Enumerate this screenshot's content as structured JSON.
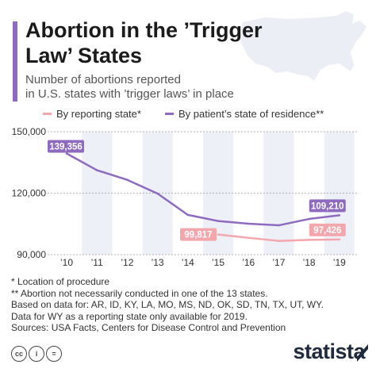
{
  "title": "Abortion in the ’Trigger Law’ States",
  "subtitle_lines": [
    "Number of abortions reported",
    "in U.S. states with ’trigger laws’ in place"
  ],
  "colors": {
    "accent": "#8e6bbf",
    "residence_line": "#8e6bbf",
    "reporting_line": "#f4a6ad",
    "band": "#eef0f8",
    "logo": "#1f2a3c"
  },
  "icons": [
    "us-map-icon",
    "creative-commons-icon",
    "attribution-icon",
    "no-derivatives-icon",
    "statista-logo-icon"
  ],
  "chart_data": {
    "type": "line",
    "categories": [
      "’10",
      "’11",
      "’12",
      "’13",
      "’14",
      "’15",
      "’16",
      "’17",
      "’18",
      "’19"
    ],
    "series": [
      {
        "name": "By reporting state*",
        "color": "#f4a6ad",
        "values": [
          null,
          null,
          null,
          null,
          null,
          99817,
          98200,
          96700,
          97200,
          97426
        ]
      },
      {
        "name": "By patient’s state of residence**",
        "color": "#8e6bbf",
        "values": [
          139356,
          131200,
          126500,
          119800,
          109400,
          106400,
          105100,
          104300,
          107400,
          109210
        ]
      }
    ],
    "data_labels": [
      {
        "text": "139,356",
        "series": 1,
        "index": 0
      },
      {
        "text": "109,210",
        "series": 1,
        "index": 9
      },
      {
        "text": "99,817",
        "series": 0,
        "index": 5
      },
      {
        "text": "97,426",
        "series": 0,
        "index": 9
      }
    ],
    "y_ticks": [
      "90,000",
      "120,000",
      "150,000"
    ],
    "y_tick_values": [
      90000,
      120000,
      150000
    ],
    "ylim": [
      90000,
      150000
    ],
    "grid": true,
    "legend": "top",
    "banding": "alternating columns"
  },
  "notes": [
    "*   Location of procedure",
    "** Abortion not necessarily conducted in one of the 13 states.",
    "Based on data for: AR, ID, KY, LA, MO, MS, ND, OK, SD, TN, TX, UT, WY.",
    "Data for WY as a reporting state only available for 2019.",
    "Sources: USA Facts, Centers for Disease Control and Prevention"
  ],
  "license_icons": [
    "cc",
    "i",
    "="
  ],
  "logo_text": "statista"
}
